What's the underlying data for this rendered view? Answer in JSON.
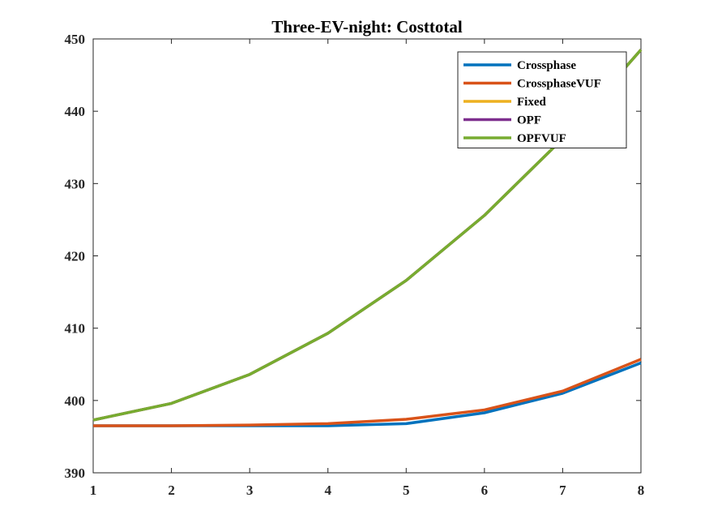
{
  "chart_data": {
    "type": "line",
    "title": "Three-EV-night: Costtotal",
    "xlabel": "",
    "ylabel": "",
    "x": [
      1,
      2,
      3,
      4,
      5,
      6,
      7,
      8
    ],
    "xlim": [
      1,
      8
    ],
    "ylim": [
      390,
      450
    ],
    "xticks": [
      1,
      2,
      3,
      4,
      5,
      6,
      7,
      8
    ],
    "yticks": [
      390,
      400,
      410,
      420,
      430,
      440,
      450
    ],
    "grid": false,
    "legend_position": "top-right",
    "series": [
      {
        "name": "Crossphase",
        "color": "#0072BD",
        "values": [
          396.5,
          396.5,
          396.5,
          396.5,
          396.8,
          398.3,
          401.0,
          405.2
        ]
      },
      {
        "name": "CrossphaseVUF",
        "color": "#D95319",
        "values": [
          396.5,
          396.5,
          396.6,
          396.8,
          397.4,
          398.7,
          401.3,
          405.7
        ]
      },
      {
        "name": "Fixed",
        "color": "#EDB120",
        "values": [
          397.3,
          399.6,
          403.6,
          409.3,
          416.6,
          425.6,
          436.2,
          448.5
        ]
      },
      {
        "name": "OPF",
        "color": "#7E2F8E",
        "values": [
          397.3,
          399.6,
          403.6,
          409.3,
          416.6,
          425.6,
          436.2,
          448.5
        ]
      },
      {
        "name": "OPFVUF",
        "color": "#77AC30",
        "values": [
          397.3,
          399.6,
          403.6,
          409.3,
          416.6,
          425.6,
          436.2,
          448.5
        ]
      }
    ]
  }
}
